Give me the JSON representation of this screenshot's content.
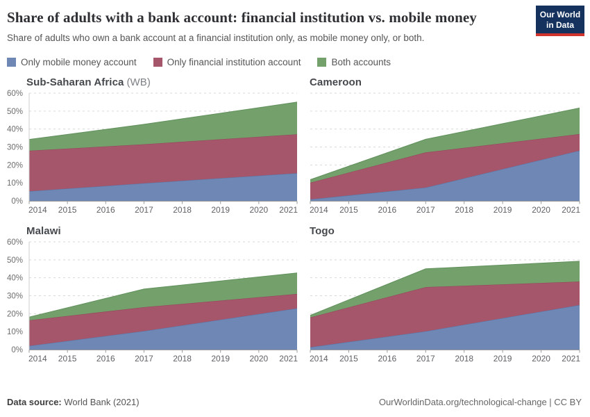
{
  "header": {
    "title": "Share of adults with a bank account: financial institution vs. mobile money",
    "subtitle": "Share of adults who own a bank account at a financial institution only, as mobile money only, or both.",
    "logo_line1": "Our World",
    "logo_line2": "in Data"
  },
  "legend": {
    "items": [
      {
        "label": "Only mobile money account",
        "color": "#6e87b5"
      },
      {
        "label": "Only financial institution account",
        "color": "#a5566a"
      },
      {
        "label": "Both accounts",
        "color": "#74a06c"
      }
    ]
  },
  "footer": {
    "source_label": "Data source:",
    "source_value": "World Bank (2021)",
    "right_text": "OurWorldinData.org/technological-change | CC BY"
  },
  "colors": {
    "mobile_fill": "#6e87b5",
    "mobile_edge": "#5876a8",
    "fi_fill": "#a5566a",
    "fi_edge": "#944359",
    "both_fill": "#74a06c",
    "both_edge": "#60905b",
    "gridline": "#d9d9d9",
    "axis": "#999999",
    "logo_bg": "#15325e",
    "logo_bar": "#d0342c"
  },
  "chart_data": [
    {
      "type": "area",
      "stacked": true,
      "title": "Sub-Saharan Africa",
      "title_suffix": "(WB)",
      "x": [
        2014,
        2017,
        2021
      ],
      "xticks": [
        2014,
        2015,
        2016,
        2017,
        2018,
        2019,
        2020,
        2021
      ],
      "ylim": [
        0,
        60
      ],
      "ytick_step": 10,
      "ytick_suffix": "%",
      "show_y_tick_labels": true,
      "grid": "dashed",
      "series": [
        {
          "name": "Only mobile money account",
          "color": "#6e87b5",
          "edge": "#5876a8",
          "values": [
            5.3,
            9.8,
            15.4
          ]
        },
        {
          "name": "Only financial institution account",
          "color": "#a5566a",
          "edge": "#944359",
          "values": [
            22.6,
            21.7,
            21.7
          ]
        },
        {
          "name": "Both accounts",
          "color": "#74a06c",
          "edge": "#60905b",
          "values": [
            6.3,
            11.1,
            17.9
          ]
        }
      ]
    },
    {
      "type": "area",
      "stacked": true,
      "title": "Cameroon",
      "title_suffix": "",
      "x": [
        2014,
        2017,
        2021
      ],
      "xticks": [
        2014,
        2015,
        2016,
        2017,
        2018,
        2019,
        2020,
        2021
      ],
      "ylim": [
        0,
        60
      ],
      "ytick_step": 10,
      "ytick_suffix": "%",
      "show_y_tick_labels": false,
      "grid": "dashed",
      "series": [
        {
          "name": "Only mobile money account",
          "color": "#6e87b5",
          "edge": "#5876a8",
          "values": [
            0.8,
            7.4,
            28.0
          ]
        },
        {
          "name": "Only financial institution account",
          "color": "#a5566a",
          "edge": "#944359",
          "values": [
            9.3,
            19.6,
            9.2
          ]
        },
        {
          "name": "Both accounts",
          "color": "#74a06c",
          "edge": "#60905b",
          "values": [
            1.7,
            7.3,
            14.5
          ]
        }
      ]
    },
    {
      "type": "area",
      "stacked": true,
      "title": "Malawi",
      "title_suffix": "",
      "x": [
        2014,
        2017,
        2021
      ],
      "xticks": [
        2014,
        2015,
        2016,
        2017,
        2018,
        2019,
        2020,
        2021
      ],
      "ylim": [
        0,
        60
      ],
      "ytick_step": 10,
      "ytick_suffix": "%",
      "show_y_tick_labels": true,
      "grid": "dashed",
      "series": [
        {
          "name": "Only mobile money account",
          "color": "#6e87b5",
          "edge": "#5876a8",
          "values": [
            2.0,
            10.3,
            23.0
          ]
        },
        {
          "name": "Only financial institution account",
          "color": "#a5566a",
          "edge": "#944359",
          "values": [
            14.3,
            13.3,
            8.0
          ]
        },
        {
          "name": "Both accounts",
          "color": "#74a06c",
          "edge": "#60905b",
          "values": [
            1.8,
            10.1,
            11.7
          ]
        }
      ]
    },
    {
      "type": "area",
      "stacked": true,
      "title": "Togo",
      "title_suffix": "",
      "x": [
        2014,
        2017,
        2021
      ],
      "xticks": [
        2014,
        2015,
        2016,
        2017,
        2018,
        2019,
        2020,
        2021
      ],
      "ylim": [
        0,
        60
      ],
      "ytick_step": 10,
      "ytick_suffix": "%",
      "show_y_tick_labels": false,
      "grid": "dashed",
      "series": [
        {
          "name": "Only mobile money account",
          "color": "#6e87b5",
          "edge": "#5876a8",
          "values": [
            1.3,
            10.2,
            24.8
          ]
        },
        {
          "name": "Only financial institution account",
          "color": "#a5566a",
          "edge": "#944359",
          "values": [
            16.6,
            24.6,
            13.1
          ]
        },
        {
          "name": "Both accounts",
          "color": "#74a06c",
          "edge": "#60905b",
          "values": [
            1.2,
            10.2,
            11.3
          ]
        }
      ]
    }
  ]
}
